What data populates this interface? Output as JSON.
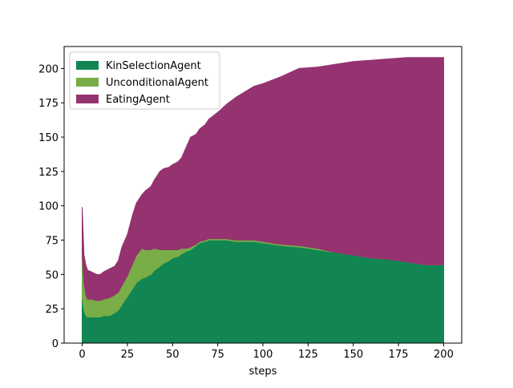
{
  "chart_data": {
    "type": "area",
    "stacked": true,
    "title": "",
    "xlabel": "steps",
    "ylabel": "",
    "xlim": [
      -10,
      210
    ],
    "ylim": [
      0,
      216
    ],
    "xticks": [
      0,
      25,
      50,
      75,
      100,
      125,
      150,
      175,
      200
    ],
    "yticks": [
      0,
      25,
      50,
      75,
      100,
      125,
      150,
      175,
      200
    ],
    "legend_position": "top-left",
    "x": [
      0,
      1,
      2,
      3,
      5,
      8,
      10,
      12,
      15,
      18,
      20,
      22,
      25,
      28,
      30,
      33,
      35,
      38,
      40,
      43,
      45,
      48,
      50,
      53,
      55,
      58,
      60,
      63,
      65,
      68,
      70,
      75,
      80,
      85,
      90,
      95,
      100,
      110,
      120,
      130,
      140,
      150,
      160,
      170,
      180,
      190,
      200
    ],
    "series": [
      {
        "name": "KinSelectionAgent",
        "color": "#118652",
        "values": [
          33,
          24,
          20,
          19,
          19,
          19,
          19,
          20,
          20,
          22,
          24,
          28,
          34,
          40,
          44,
          47,
          48,
          50,
          53,
          56,
          58,
          60,
          62,
          63,
          65,
          67,
          68,
          71,
          73,
          74,
          75,
          75,
          75,
          74,
          74,
          74,
          73,
          71,
          70,
          68,
          66,
          64,
          62,
          61,
          59,
          57,
          57
        ]
      },
      {
        "name": "UnconditionalAgent",
        "color": "#78ad47",
        "values": [
          32,
          20,
          15,
          13,
          13,
          12,
          12,
          12,
          13,
          13,
          13,
          14,
          15,
          18,
          20,
          22,
          20,
          18,
          16,
          12,
          10,
          8,
          6,
          5,
          4,
          2,
          2,
          1,
          1,
          1,
          1,
          1,
          1,
          1,
          1,
          1,
          1,
          1,
          1,
          1,
          0,
          0,
          0,
          0,
          0,
          0,
          0
        ]
      },
      {
        "name": "EatingAgent",
        "color": "#953370",
        "values": [
          34,
          20,
          22,
          21,
          20,
          19,
          19,
          20,
          21,
          21,
          23,
          28,
          30,
          36,
          38,
          39,
          43,
          46,
          50,
          57,
          59,
          60,
          62,
          64,
          66,
          75,
          80,
          80,
          82,
          84,
          87,
          92,
          98,
          104,
          108,
          112,
          115,
          122,
          129,
          132,
          137,
          141,
          144,
          146,
          149,
          151,
          151
        ]
      }
    ]
  }
}
